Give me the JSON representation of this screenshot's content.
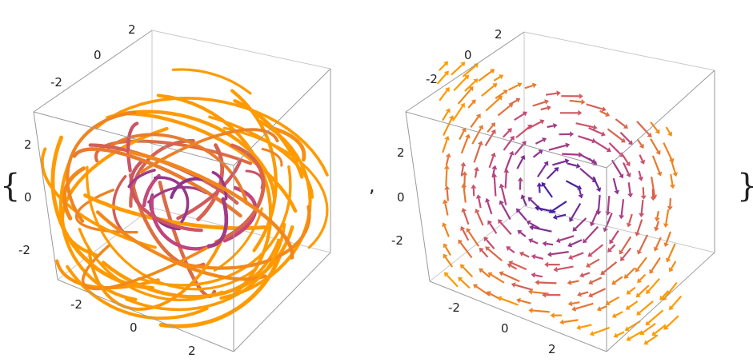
{
  "expression": {
    "open_brace": "{",
    "separator": ",",
    "close_brace": "}"
  },
  "plots": [
    {
      "kind": "3d-stream-plot",
      "x_tick_labels": [
        "-2",
        "0",
        "2"
      ],
      "y_tick_labels": [
        "2",
        "0",
        "-2"
      ],
      "z_tick_labels": [
        "2",
        "0",
        "-2"
      ]
    },
    {
      "kind": "3d-vector-plot",
      "x_tick_labels": [
        "-2",
        "0",
        "2"
      ],
      "y_tick_labels": [
        "2",
        "0",
        "-2"
      ],
      "z_tick_labels": [
        "2",
        "0",
        "-2"
      ]
    }
  ],
  "colors": {
    "low": "#3b1ba8",
    "mid": "#c0457d",
    "high": "#ff9a00",
    "box": "#b8b8b8"
  }
}
